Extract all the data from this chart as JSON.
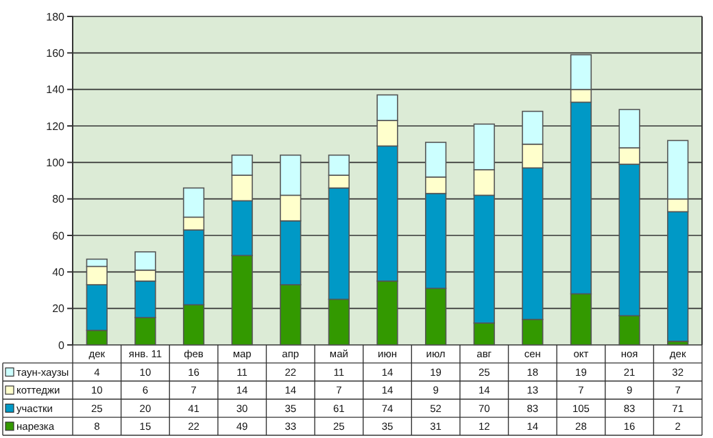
{
  "chart_data": {
    "type": "bar",
    "stacked": true,
    "categories": [
      "дек",
      "янв. 11",
      "фев",
      "мар",
      "апр",
      "май",
      "июн",
      "июл",
      "авг",
      "сен",
      "окт",
      "ноя",
      "дек"
    ],
    "series": [
      {
        "name": "нарезка",
        "color": "#339900",
        "values": [
          8,
          15,
          22,
          49,
          33,
          25,
          35,
          31,
          12,
          14,
          28,
          16,
          2
        ]
      },
      {
        "name": "участки",
        "color": "#0099c6",
        "values": [
          25,
          20,
          41,
          30,
          35,
          61,
          74,
          52,
          70,
          83,
          105,
          83,
          71
        ]
      },
      {
        "name": "коттеджи",
        "color": "#ffffcc",
        "values": [
          10,
          6,
          7,
          14,
          14,
          7,
          14,
          9,
          14,
          13,
          7,
          9,
          7
        ]
      },
      {
        "name": "таун-хаузы",
        "color": "#ccffff",
        "values": [
          4,
          10,
          16,
          11,
          22,
          11,
          14,
          19,
          25,
          18,
          19,
          21,
          32
        ]
      }
    ],
    "ylim": [
      0,
      180
    ],
    "yticks": [
      0,
      20,
      40,
      60,
      80,
      100,
      120,
      140,
      160,
      180
    ],
    "grid": "y",
    "legend": "bottom",
    "data_labels": true
  }
}
